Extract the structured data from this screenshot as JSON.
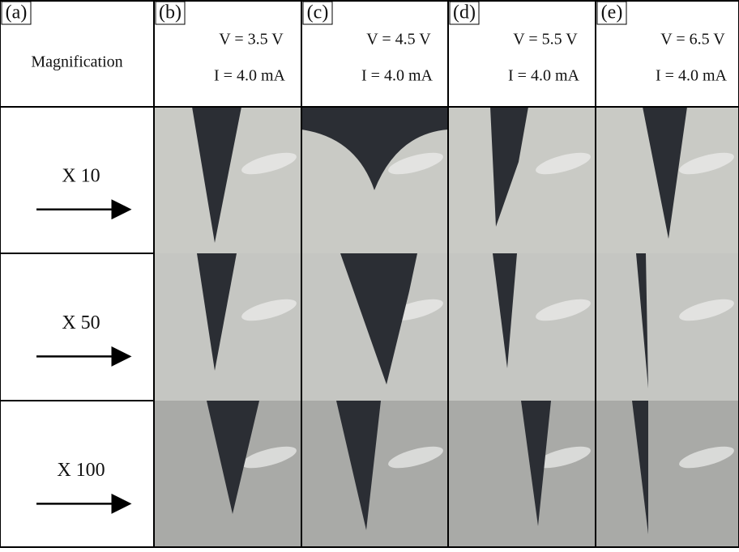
{
  "panels": [
    {
      "label": "(a)",
      "header": "Magnification"
    },
    {
      "label": "(b)",
      "voltage": "V = 3.5 V",
      "current": "I = 4.0 mA"
    },
    {
      "label": "(c)",
      "voltage": "V = 4.5 V",
      "current": "I = 4.0 mA"
    },
    {
      "label": "(d)",
      "voltage": "V = 5.5 V",
      "current": "I = 4.0 mA"
    },
    {
      "label": "(e)",
      "voltage": "V = 6.5 V",
      "current": "I = 4.0 mA"
    }
  ],
  "rows": [
    {
      "magnification": "X 10"
    },
    {
      "magnification": "X 50"
    },
    {
      "magnification": "X 100"
    }
  ]
}
